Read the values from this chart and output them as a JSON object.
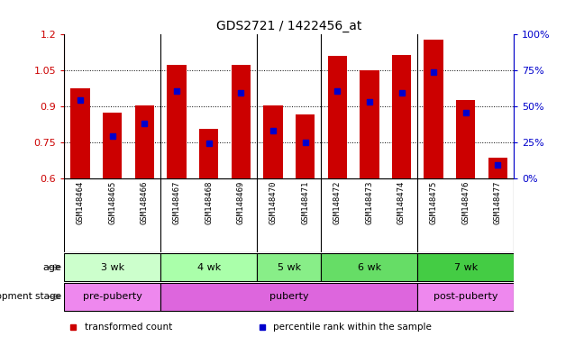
{
  "title": "GDS2721 / 1422456_at",
  "samples": [
    "GSM148464",
    "GSM148465",
    "GSM148466",
    "GSM148467",
    "GSM148468",
    "GSM148469",
    "GSM148470",
    "GSM148471",
    "GSM148472",
    "GSM148473",
    "GSM148474",
    "GSM148475",
    "GSM148476",
    "GSM148477"
  ],
  "bar_tops": [
    0.975,
    0.875,
    0.905,
    1.075,
    0.805,
    1.075,
    0.905,
    0.865,
    1.11,
    1.05,
    1.115,
    1.18,
    0.925,
    0.685
  ],
  "bar_bottoms": [
    0.6,
    0.6,
    0.6,
    0.6,
    0.6,
    0.6,
    0.6,
    0.6,
    0.6,
    0.6,
    0.6,
    0.6,
    0.6,
    0.6
  ],
  "blue_dot_y": [
    0.925,
    0.775,
    0.83,
    0.965,
    0.745,
    0.955,
    0.8,
    0.75,
    0.965,
    0.92,
    0.955,
    1.045,
    0.875,
    0.655
  ],
  "ylim": [
    0.6,
    1.2
  ],
  "y2lim": [
    0,
    100
  ],
  "yticks": [
    0.6,
    0.75,
    0.9,
    1.05,
    1.2
  ],
  "y2ticks": [
    0,
    25,
    50,
    75,
    100
  ],
  "ytick_labels": [
    "0.6",
    "0.75",
    "0.9",
    "1.05",
    "1.2"
  ],
  "y2tick_labels": [
    "0%",
    "25%",
    "50%",
    "75%",
    "100%"
  ],
  "hlines": [
    0.75,
    0.9,
    1.05
  ],
  "bar_color": "#cc0000",
  "dot_color": "#0000cc",
  "age_groups": [
    {
      "label": "3 wk",
      "start": 0,
      "end": 3,
      "color": "#ccffcc"
    },
    {
      "label": "4 wk",
      "start": 3,
      "end": 6,
      "color": "#aaffaa"
    },
    {
      "label": "5 wk",
      "start": 6,
      "end": 8,
      "color": "#88ee88"
    },
    {
      "label": "6 wk",
      "start": 8,
      "end": 11,
      "color": "#66dd66"
    },
    {
      "label": "7 wk",
      "start": 11,
      "end": 14,
      "color": "#44cc44"
    }
  ],
  "dev_groups": [
    {
      "label": "pre-puberty",
      "start": 0,
      "end": 3,
      "color": "#ee88ee"
    },
    {
      "label": "puberty",
      "start": 3,
      "end": 11,
      "color": "#dd66dd"
    },
    {
      "label": "post-puberty",
      "start": 11,
      "end": 14,
      "color": "#ee88ee"
    }
  ],
  "legend_items": [
    {
      "color": "#cc0000",
      "label": "transformed count"
    },
    {
      "color": "#0000cc",
      "label": "percentile rank within the sample"
    }
  ],
  "bg_color": "#ffffff",
  "tick_bg": "#cccccc"
}
